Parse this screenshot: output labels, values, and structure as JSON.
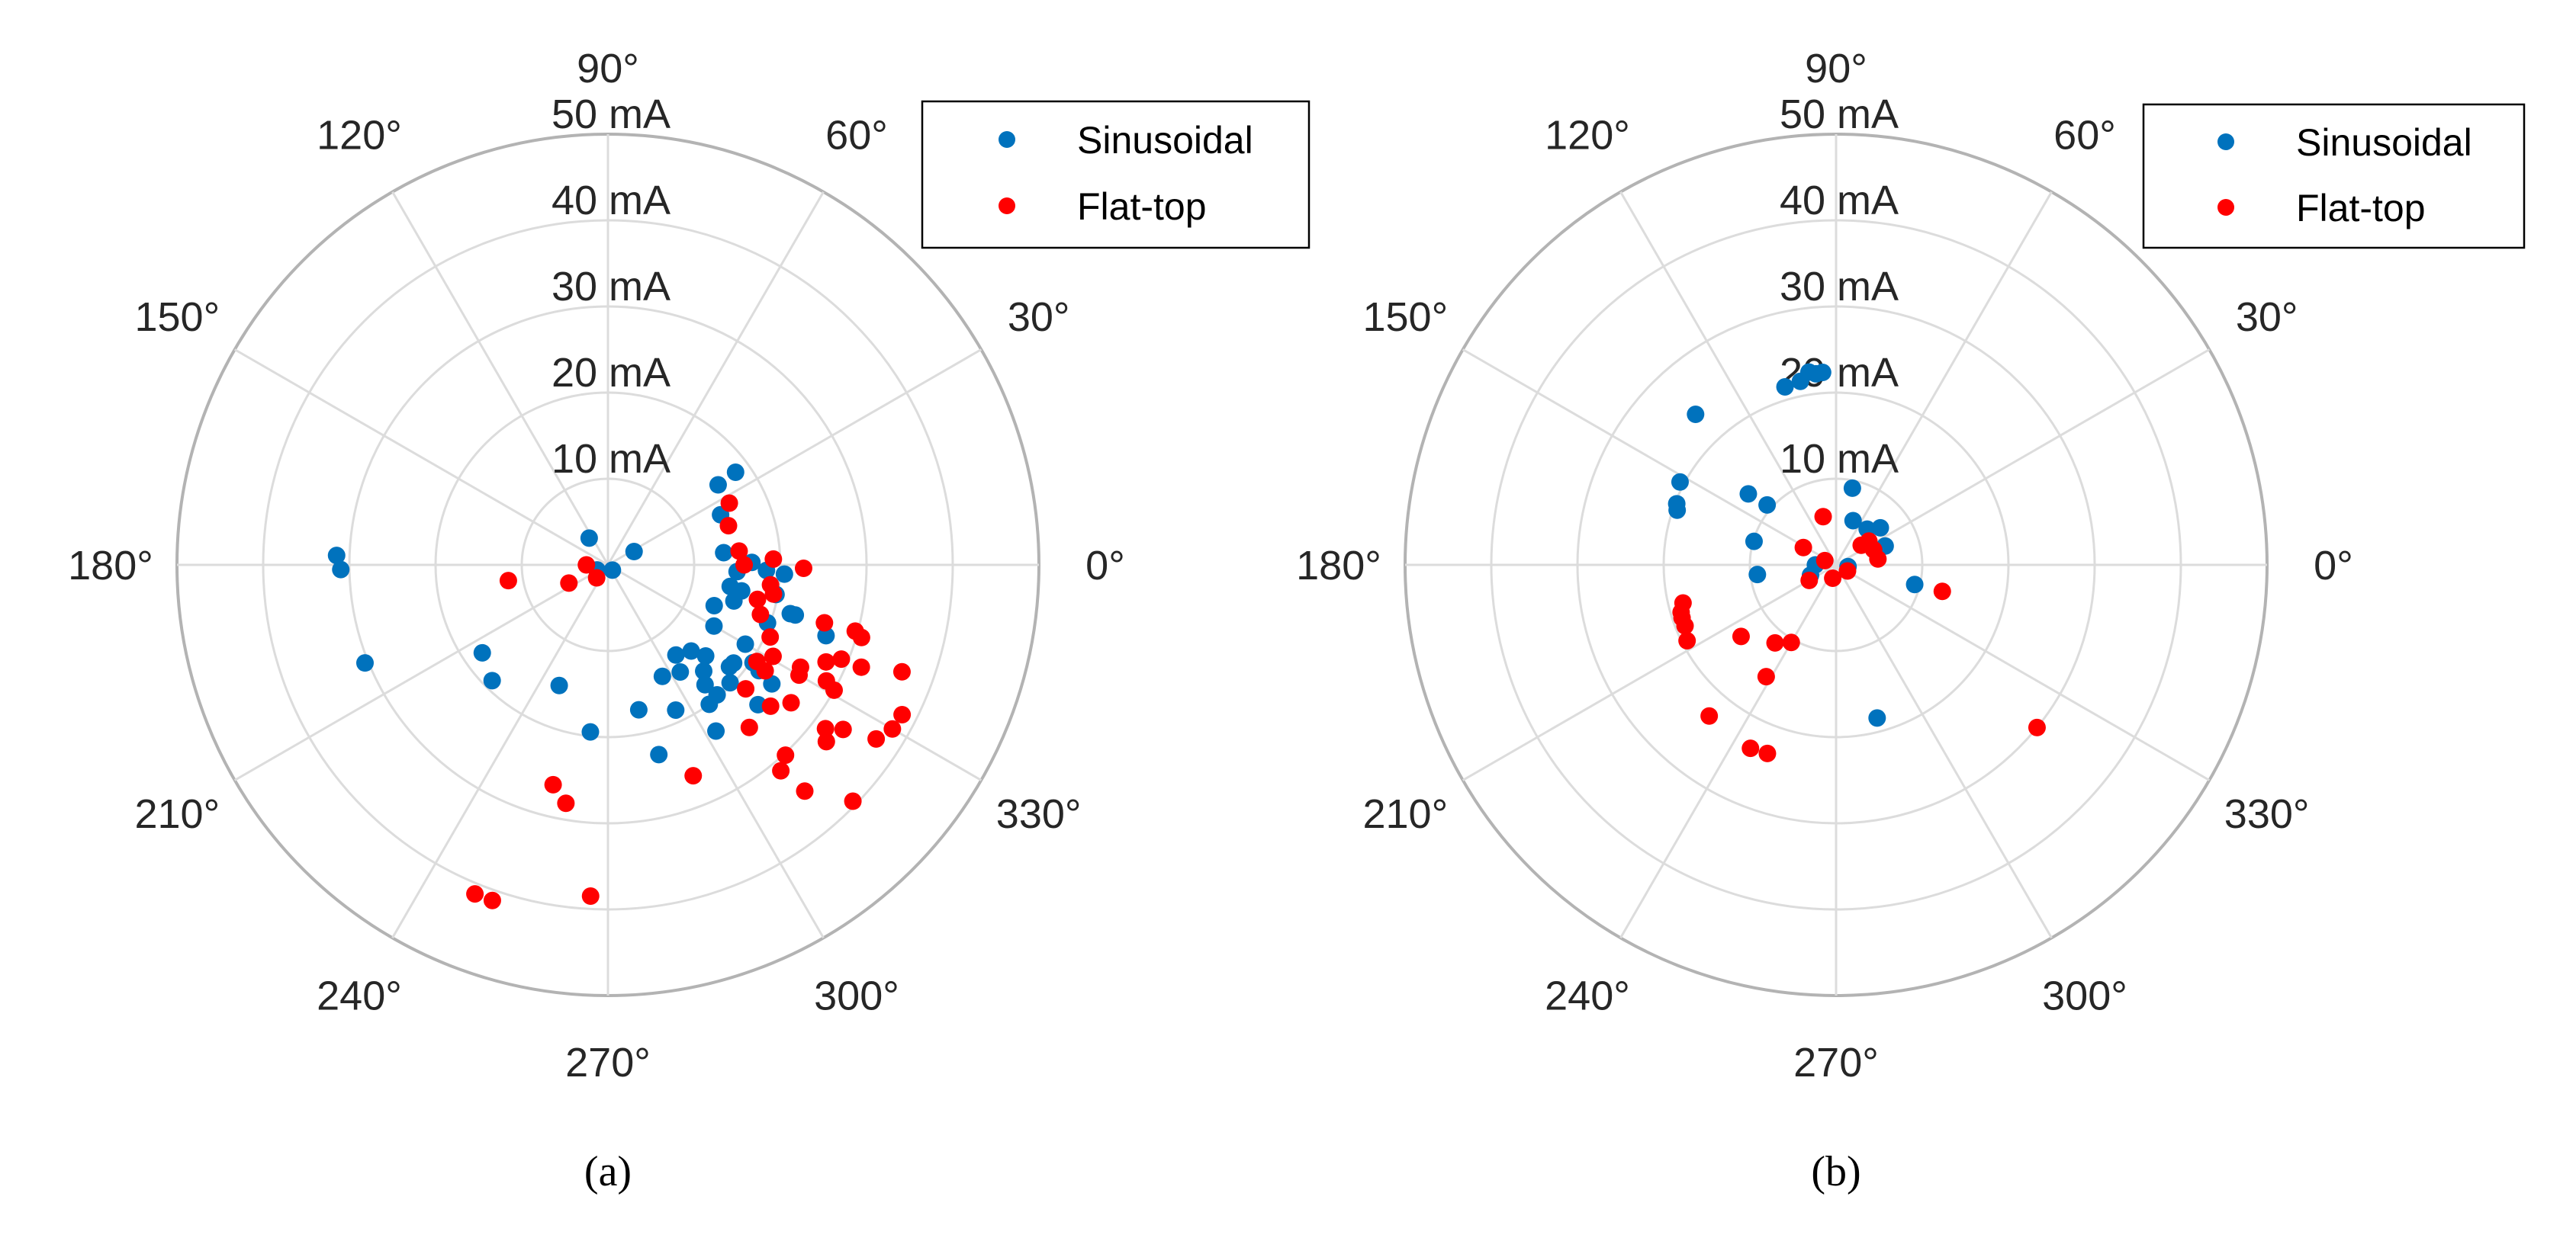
{
  "colors": {
    "Sinusoidal": "#0072bd",
    "Flat-top": "#ff0000"
  },
  "chart_data": [
    {
      "type": "scatter",
      "subtype": "polar",
      "caption": "(a)",
      "r_unit": "mA",
      "rlim": [
        0,
        50
      ],
      "radial_ticks": [
        10,
        20,
        30,
        40,
        50
      ],
      "radial_tick_labels": [
        "10 mA",
        "20 mA",
        "30 mA",
        "40 mA",
        "50 mA"
      ],
      "angular_ticks_deg": [
        0,
        30,
        60,
        90,
        120,
        150,
        180,
        210,
        240,
        270,
        300,
        330
      ],
      "angular_tick_labels": [
        "0°",
        "30°",
        "60°",
        "90°",
        "120°",
        "150°",
        "180°",
        "210°",
        "240°",
        "270°",
        "300°",
        "330°"
      ],
      "grid": true,
      "legend": {
        "position": "top-right",
        "entries": [
          "Sinusoidal",
          "Flat-top"
        ]
      },
      "series": [
        {
          "name": "Sinusoidal",
          "points_theta_deg_r_mA": [
            [
              36,
              18.3
            ],
            [
              36,
              15.8
            ],
            [
              24,
              14.3
            ],
            [
              125,
              3.8
            ],
            [
              27,
              3.4
            ],
            [
              178,
              31.5
            ],
            [
              181,
              31
            ],
            [
              310,
              0.8
            ],
            [
              6,
              13.5
            ],
            [
              1,
              16.7
            ],
            [
              357,
              15
            ],
            [
              358,
              18.4
            ],
            [
              357,
              20.5
            ],
            [
              350,
              14.4
            ],
            [
              349,
              15.8
            ],
            [
              344,
              15.2
            ],
            [
              350,
              19.8
            ],
            [
              339,
              13.2
            ],
            [
              345,
              21.9
            ],
            [
              345,
              22.5
            ],
            [
              340,
              19.7
            ],
            [
              330,
              14.2
            ],
            [
              342,
              26.6
            ],
            [
              330,
              18.4
            ],
            [
              307,
              13.1
            ],
            [
              314,
              13.9
            ],
            [
              317,
              15.5
            ],
            [
              322,
              18.5
            ],
            [
              320,
              18.4
            ],
            [
              326,
              20.3
            ],
            [
              325,
              21.4
            ],
            [
              296,
              14.4
            ],
            [
              304,
              15
            ],
            [
              312,
              16.6
            ],
            [
              309,
              17.9
            ],
            [
              316,
              19.7
            ],
            [
              324,
              23.5
            ],
            [
              310,
              19.7
            ],
            [
              306,
              20
            ],
            [
              317,
              23.8
            ],
            [
              303,
              23
            ],
            [
              295,
              18.6
            ],
            [
              282,
              17.2
            ],
            [
              264,
              19.5
            ],
            [
              285,
              22.8
            ],
            [
              248,
              15.1
            ],
            [
              215,
              17.8
            ],
            [
              225,
              19
            ],
            [
              202,
              30.4
            ],
            [
              205,
              1.4
            ]
          ]
        },
        {
          "name": "Flat-top",
          "points_theta_deg_r_mA": [
            [
              27,
              15.8
            ],
            [
              18,
              14.7
            ],
            [
              6,
              15.3
            ],
            [
              2,
              19.2
            ],
            [
              0,
              15.8
            ],
            [
              359,
              22.7
            ],
            [
              180,
              2.5
            ],
            [
              229,
              2
            ],
            [
              205,
              5
            ],
            [
              189,
              11.7
            ],
            [
              353,
              19
            ],
            [
              350,
              19.5
            ],
            [
              347,
              17.8
            ],
            [
              342,
              18.6
            ],
            [
              336,
              20.6
            ],
            [
              345,
              26
            ],
            [
              345,
              29.7
            ],
            [
              344,
              30.6
            ],
            [
              327,
              20.6
            ],
            [
              331,
              21.9
            ],
            [
              326,
              22
            ],
            [
              332,
              25.3
            ],
            [
              330,
              25.6
            ],
            [
              336,
              27.7
            ],
            [
              338,
              29.2
            ],
            [
              338,
              31.7
            ],
            [
              332,
              28.7
            ],
            [
              331,
              30
            ],
            [
              318,
              21.5
            ],
            [
              319,
              25
            ],
            [
              323,
              26.6
            ],
            [
              311,
              25
            ],
            [
              323,
              31.6
            ],
            [
              325,
              33.3
            ],
            [
              321,
              32.6
            ],
            [
              327,
              37.1
            ],
            [
              330,
              38.1
            ],
            [
              340,
              36.3
            ],
            [
              333,
              38.3
            ],
            [
              313,
              30.2
            ],
            [
              310,
              31.2
            ],
            [
              311,
              34.8
            ],
            [
              316,
              39.5
            ],
            [
              292,
              26.4
            ],
            [
              256,
              26.3
            ],
            [
              260,
              28.1
            ],
            [
              248,
              41.2
            ],
            [
              251,
              41.2
            ],
            [
              267,
              38.5
            ]
          ]
        }
      ]
    },
    {
      "type": "scatter",
      "subtype": "polar",
      "caption": "(b)",
      "r_unit": "mA",
      "rlim": [
        0,
        50
      ],
      "radial_ticks": [
        10,
        20,
        30,
        40,
        50
      ],
      "radial_tick_labels": [
        "10 mA",
        "20 mA",
        "30 mA",
        "40 mA",
        "50 mA"
      ],
      "angular_ticks_deg": [
        0,
        30,
        60,
        90,
        120,
        150,
        180,
        210,
        240,
        270,
        300,
        330
      ],
      "angular_tick_labels": [
        "0°",
        "30°",
        "60°",
        "90°",
        "120°",
        "150°",
        "180°",
        "210°",
        "240°",
        "270°",
        "300°",
        "330°"
      ],
      "grid": true,
      "legend": {
        "position": "top-right",
        "entries": [
          "Sinusoidal",
          "Flat-top"
        ]
      },
      "series": [
        {
          "name": "Sinusoidal",
          "points_theta_deg_r_mA": [
            [
              96,
              22.3
            ],
            [
              101,
              21.7
            ],
            [
              106,
              21.5
            ],
            [
              94,
              22.4
            ],
            [
              98,
              22.6
            ],
            [
              133,
              23.9
            ],
            [
              152,
              20.5
            ],
            [
              159,
              19.8
            ],
            [
              161,
              19.5
            ],
            [
              141,
              13.1
            ],
            [
              139,
              10.6
            ],
            [
              78,
              9.1
            ],
            [
              164,
              9.9
            ],
            [
              187,
              9.2
            ],
            [
              69,
              5.5
            ],
            [
              49,
              5.5
            ],
            [
              40,
              6.7
            ],
            [
              21,
              6.1
            ],
            [
              180,
              2.4
            ],
            [
              202,
              3.2
            ],
            [
              352,
              1.4
            ],
            [
              346,
              9.4
            ],
            [
              285,
              18.4
            ]
          ]
        },
        {
          "name": "Flat-top",
          "points_theta_deg_r_mA": [
            [
              105,
              5.8
            ],
            [
              152,
              4.3
            ],
            [
              159,
              1.4
            ],
            [
              210,
              3.6
            ],
            [
              256,
              1.6
            ],
            [
              332,
              1.5
            ],
            [
              38,
              3.7
            ],
            [
              36,
              4.7
            ],
            [
              22,
              4.7
            ],
            [
              8,
              4.9
            ],
            [
              346,
              12.7
            ],
            [
              194,
              18.3
            ],
            [
              197,
              18.8
            ],
            [
              199,
              18.9
            ],
            [
              202,
              18.9
            ],
            [
              207,
              19.4
            ],
            [
              217,
              13.8
            ],
            [
              232,
              11.5
            ],
            [
              240,
              10.4
            ],
            [
              238,
              15.3
            ],
            [
              230,
              22.9
            ],
            [
              245,
              23.5
            ],
            [
              250,
              23.3
            ],
            [
              321,
              30
            ]
          ]
        }
      ]
    }
  ]
}
